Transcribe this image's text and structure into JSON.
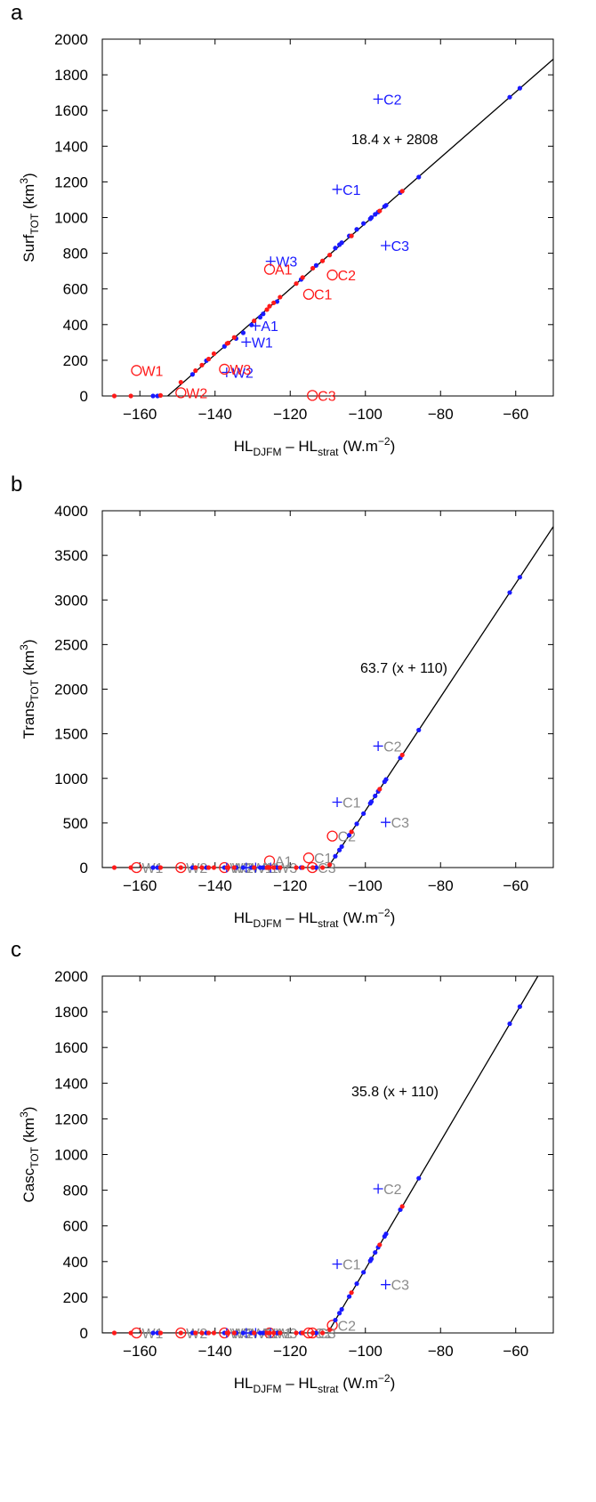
{
  "colors": {
    "blue": "#1a1aff",
    "red": "#ff1a1a",
    "gray": "#8a8a8a",
    "black": "#000000"
  },
  "chart_data": [
    {
      "type": "scatter",
      "panel_label": "a",
      "xlabel": {
        "main": "HL",
        "sub1": "DJFM",
        "mid": " – HL",
        "sub2": "strat",
        "unit": " (W.m",
        "sup": "−2",
        "end": ")"
      },
      "ylabel": {
        "main": "Surf",
        "sub": "TOT",
        "unit": " (km",
        "sup": "3",
        "end": ")"
      },
      "xlim": [
        -170,
        -50
      ],
      "ylim": [
        0,
        2000
      ],
      "xticks": [
        -160,
        -140,
        -120,
        -100,
        -80,
        -60
      ],
      "yticks": [
        0,
        200,
        400,
        600,
        800,
        1000,
        1200,
        1400,
        1600,
        1800,
        2000
      ],
      "equation": "18.4 x + 2808",
      "fit": {
        "x": [
          -152.6,
          -50
        ],
        "y": [
          0,
          1888
        ]
      },
      "series": [
        {
          "color": "blue",
          "x": [
            -156.5,
            -155.3,
            -146,
            -142.3,
            -137.5,
            -134.4,
            -132.5,
            -130.3,
            -128,
            -127.2,
            -123.5,
            -117.1,
            -113.1,
            -108,
            -106.9,
            -106.3,
            -104.3,
            -102.3,
            -100.5,
            -98.7,
            -98.4,
            -97.4,
            -96.6,
            -94.9,
            -94.5,
            -90.7,
            -85.8,
            -61.6,
            -58.9
          ],
          "y": [
            0,
            0,
            121,
            198,
            278,
            322,
            354,
            398,
            441,
            460,
            529,
            653,
            732,
            829,
            848,
            859,
            897,
            934,
            967,
            993,
            1000,
            1018,
            1031,
            1062,
            1069,
            1140,
            1227,
            1675,
            1725
          ]
        },
        {
          "color": "red",
          "x": [
            -166.8,
            -162.4,
            -154.5,
            -149.1,
            -145.2,
            -143.5,
            -141.7,
            -140.3,
            -136.8,
            -136.5,
            -134.9,
            -129.6,
            -126.2,
            -125.5,
            -124.4,
            -122.7,
            -118.4,
            -116.7,
            -114,
            -111.4,
            -109.5,
            -103.7,
            -96.2,
            -90.2
          ],
          "y": [
            0,
            0,
            3,
            77,
            142,
            173,
            207,
            237,
            294,
            297,
            328,
            421,
            484,
            503,
            522,
            554,
            630,
            664,
            716,
            757,
            790,
            897,
            1037,
            1148
          ]
        }
      ],
      "annotations": [
        {
          "marker": "plus",
          "color": "blue",
          "x": -96.6,
          "y": 1664,
          "label": "C2"
        },
        {
          "marker": "plus",
          "color": "blue",
          "x": -107.5,
          "y": 1158,
          "label": "C1"
        },
        {
          "marker": "plus",
          "color": "blue",
          "x": -94.6,
          "y": 843,
          "label": "C3"
        },
        {
          "marker": "plus",
          "color": "blue",
          "x": -125.2,
          "y": 755,
          "label": "W3"
        },
        {
          "marker": "plus",
          "color": "blue",
          "x": -129.2,
          "y": 393,
          "label": "A1"
        },
        {
          "marker": "plus",
          "color": "blue",
          "x": -131.7,
          "y": 302,
          "label": "W1"
        },
        {
          "marker": "plus",
          "color": "blue",
          "x": -136.9,
          "y": 132,
          "label": "W2"
        },
        {
          "marker": "circle",
          "color": "red",
          "x": -125.5,
          "y": 710,
          "label": "A1"
        },
        {
          "marker": "circle",
          "color": "red",
          "x": -108.8,
          "y": 678,
          "label": "C2"
        },
        {
          "marker": "circle",
          "color": "red",
          "x": -115.1,
          "y": 570,
          "label": "C1"
        },
        {
          "marker": "circle",
          "color": "red",
          "x": -160.9,
          "y": 143,
          "label": "W1"
        },
        {
          "marker": "circle",
          "color": "red",
          "x": -137.5,
          "y": 150,
          "label": "W3"
        },
        {
          "marker": "circle",
          "color": "red",
          "x": -149.1,
          "y": 18,
          "label": "W2"
        },
        {
          "marker": "circle",
          "color": "red",
          "x": -114.1,
          "y": 3,
          "label": "C3"
        }
      ]
    },
    {
      "type": "scatter",
      "panel_label": "b",
      "xlabel": {
        "main": "HL",
        "sub1": "DJFM",
        "mid": " – HL",
        "sub2": "strat",
        "unit": " (W.m",
        "sup": "−2",
        "end": ")"
      },
      "ylabel": {
        "main": "Trans",
        "sub": "TOT",
        "unit": " (km",
        "sup": "3",
        "end": ")"
      },
      "xlim": [
        -170,
        -50
      ],
      "ylim": [
        0,
        4000
      ],
      "xticks": [
        -160,
        -140,
        -120,
        -100,
        -80,
        -60
      ],
      "yticks": [
        0,
        500,
        1000,
        1500,
        2000,
        2500,
        3000,
        3500,
        4000
      ],
      "equation": "63.7 (x + 110)",
      "fit": {
        "x": [
          -170,
          -110,
          -50
        ],
        "y": [
          0,
          0,
          3822
        ]
      },
      "series": [
        {
          "color": "blue",
          "x": [
            -156.5,
            -155.3,
            -146,
            -142.3,
            -137.5,
            -134.4,
            -132.5,
            -130.3,
            -128,
            -127.2,
            -123.5,
            -117.1,
            -113.1,
            -108,
            -106.9,
            -106.3,
            -104.3,
            -102.3,
            -100.5,
            -98.7,
            -98.4,
            -97.4,
            -96.6,
            -94.9,
            -94.5,
            -90.7,
            -85.8,
            -61.6,
            -58.9
          ],
          "y": [
            0,
            0,
            0,
            0,
            0,
            0,
            0,
            0,
            0,
            0,
            0,
            0,
            0,
            127,
            197,
            235,
            363,
            490,
            605,
            720,
            739,
            803,
            854,
            962,
            988,
            1230,
            1542,
            3083,
            3255
          ]
        },
        {
          "color": "red",
          "x": [
            -166.8,
            -162.4,
            -154.5,
            -149.1,
            -145.2,
            -143.5,
            -141.7,
            -140.3,
            -136.8,
            -136.5,
            -134.9,
            -129.6,
            -126.2,
            -125.5,
            -124.4,
            -122.7,
            -118.4,
            -116.7,
            -114,
            -111.4,
            -109.5,
            -103.7,
            -96.2,
            -90.2
          ],
          "y": [
            0,
            0,
            0,
            0,
            0,
            0,
            0,
            0,
            0,
            0,
            0,
            0,
            0,
            0,
            0,
            0,
            0,
            0,
            0,
            0,
            32,
            401,
            879,
            1262
          ]
        }
      ],
      "annotations": [
        {
          "marker": "plus",
          "color": "blue",
          "x": -96.6,
          "y": 1362,
          "label": "C2",
          "label_color": "gray"
        },
        {
          "marker": "plus",
          "color": "blue",
          "x": -107.5,
          "y": 733,
          "label": "C1",
          "label_color": "gray"
        },
        {
          "marker": "plus",
          "color": "blue",
          "x": -94.6,
          "y": 507,
          "label": "C3",
          "label_color": "gray"
        },
        {
          "marker": "circle",
          "color": "red",
          "x": -108.8,
          "y": 353,
          "label": "C2",
          "label_color": "gray"
        },
        {
          "marker": "circle",
          "color": "red",
          "x": -115.1,
          "y": 108,
          "label": "C1",
          "label_color": "gray"
        },
        {
          "marker": "circle",
          "color": "red",
          "x": -125.5,
          "y": 75,
          "label": "A1",
          "label_color": "gray"
        },
        {
          "marker": "circle",
          "color": "red",
          "x": -160.9,
          "y": 0,
          "label": "W1",
          "label_color": "gray"
        },
        {
          "marker": "circle",
          "color": "red",
          "x": -149.1,
          "y": 0,
          "label": "W2",
          "label_color": "gray"
        },
        {
          "marker": "circle",
          "color": "red",
          "x": -137.5,
          "y": 0,
          "label": "W3",
          "label_color": "gray"
        },
        {
          "marker": "circle",
          "color": "red",
          "x": -114.1,
          "y": 0,
          "label": "C3",
          "label_color": "gray"
        },
        {
          "marker": "plus",
          "color": "blue",
          "x": -136.9,
          "y": 0,
          "label": "W2",
          "label_color": "gray"
        },
        {
          "marker": "plus",
          "color": "blue",
          "x": -131.7,
          "y": 0,
          "label": "W1",
          "label_color": "gray"
        },
        {
          "marker": "plus",
          "color": "blue",
          "x": -129.2,
          "y": 0,
          "label": "A1",
          "label_color": "gray"
        },
        {
          "marker": "plus",
          "color": "blue",
          "x": -125.2,
          "y": 0,
          "label": "W3",
          "label_color": "gray"
        }
      ]
    },
    {
      "type": "scatter",
      "panel_label": "c",
      "xlabel": {
        "main": "HL",
        "sub1": "DJFM",
        "mid": " – HL",
        "sub2": "strat",
        "unit": " (W.m",
        "sup": "−2",
        "end": ")"
      },
      "ylabel": {
        "main": "Casc",
        "sub": "TOT",
        "unit": " (km",
        "sup": "3",
        "end": ")"
      },
      "xlim": [
        -170,
        -50
      ],
      "ylim": [
        0,
        2000
      ],
      "xticks": [
        -160,
        -140,
        -120,
        -100,
        -80,
        -60
      ],
      "yticks": [
        0,
        200,
        400,
        600,
        800,
        1000,
        1200,
        1400,
        1600,
        1800,
        2000
      ],
      "equation": "35.8 (x + 110)",
      "fit": {
        "x": [
          -170,
          -110,
          -54.1
        ],
        "y": [
          0,
          0,
          2000
        ]
      },
      "series": [
        {
          "color": "blue",
          "x": [
            -156.5,
            -155.3,
            -146,
            -142.3,
            -137.5,
            -134.4,
            -132.5,
            -130.3,
            -128,
            -127.2,
            -123.5,
            -117.1,
            -113.1,
            -108,
            -106.9,
            -106.3,
            -104.3,
            -102.3,
            -100.5,
            -98.7,
            -98.4,
            -97.4,
            -96.6,
            -94.9,
            -94.5,
            -90.7,
            -85.8,
            -61.6,
            -58.9
          ],
          "y": [
            0,
            0,
            0,
            0,
            0,
            0,
            0,
            0,
            0,
            0,
            0,
            0,
            0,
            72,
            111,
            132,
            204,
            276,
            340,
            404,
            415,
            451,
            480,
            541,
            555,
            691,
            867,
            1733,
            1829
          ]
        },
        {
          "color": "red",
          "x": [
            -166.8,
            -162.4,
            -154.5,
            -149.1,
            -145.2,
            -143.5,
            -141.7,
            -140.3,
            -136.8,
            -136.5,
            -134.9,
            -129.6,
            -126.2,
            -125.5,
            -124.4,
            -122.7,
            -118.4,
            -116.7,
            -114,
            -111.4,
            -109.5,
            -103.7,
            -96.2,
            -90.2
          ],
          "y": [
            0,
            0,
            0,
            0,
            0,
            0,
            0,
            0,
            0,
            0,
            0,
            0,
            0,
            0,
            0,
            0,
            0,
            0,
            0,
            0,
            18,
            226,
            494,
            709
          ]
        }
      ],
      "annotations": [
        {
          "marker": "plus",
          "color": "blue",
          "x": -96.6,
          "y": 808,
          "label": "C2",
          "label_color": "gray"
        },
        {
          "marker": "plus",
          "color": "blue",
          "x": -107.5,
          "y": 386,
          "label": "C1",
          "label_color": "gray"
        },
        {
          "marker": "plus",
          "color": "blue",
          "x": -94.6,
          "y": 271,
          "label": "C3",
          "label_color": "gray"
        },
        {
          "marker": "circle",
          "color": "red",
          "x": -108.8,
          "y": 43,
          "label": "C2",
          "label_color": "gray"
        },
        {
          "marker": "circle",
          "color": "red",
          "x": -115.1,
          "y": 0,
          "label": "C1",
          "label_color": "gray"
        },
        {
          "marker": "circle",
          "color": "red",
          "x": -125.5,
          "y": 0,
          "label": "A1",
          "label_color": "gray"
        },
        {
          "marker": "circle",
          "color": "red",
          "x": -160.9,
          "y": 0,
          "label": "W1",
          "label_color": "gray"
        },
        {
          "marker": "circle",
          "color": "red",
          "x": -149.1,
          "y": 0,
          "label": "W2",
          "label_color": "gray"
        },
        {
          "marker": "circle",
          "color": "red",
          "x": -137.5,
          "y": 0,
          "label": "W3",
          "label_color": "gray"
        },
        {
          "marker": "circle",
          "color": "red",
          "x": -114.1,
          "y": 0,
          "label": "C3",
          "label_color": "gray"
        },
        {
          "marker": "plus",
          "color": "blue",
          "x": -136.9,
          "y": 0,
          "label": "W2",
          "label_color": "gray"
        },
        {
          "marker": "plus",
          "color": "blue",
          "x": -131.7,
          "y": 0,
          "label": "W1",
          "label_color": "gray"
        },
        {
          "marker": "plus",
          "color": "blue",
          "x": -129.2,
          "y": 0,
          "label": "A1",
          "label_color": "gray"
        },
        {
          "marker": "plus",
          "color": "blue",
          "x": -125.2,
          "y": 0,
          "label": "W3",
          "label_color": "gray"
        }
      ]
    }
  ]
}
